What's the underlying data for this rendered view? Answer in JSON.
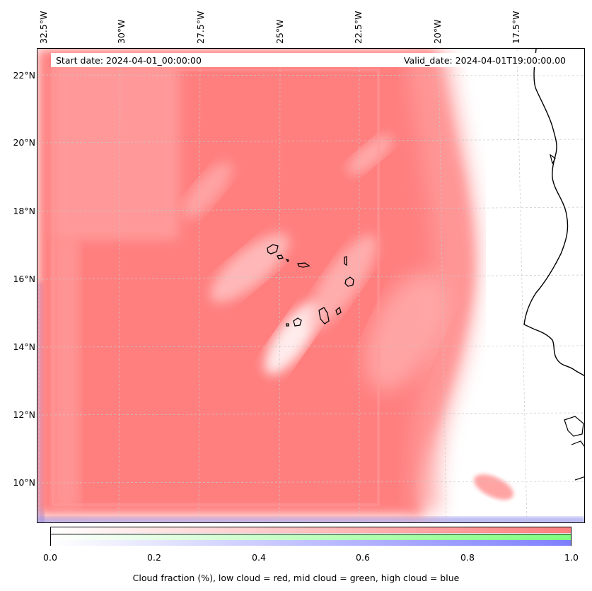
{
  "map": {
    "start_date": "Start date: 2024-04-01_00:00:00",
    "valid_date": "Valid_date: 2024-04-01T19:00:00.00",
    "lon_ticks": [
      "32.5°W",
      "30°W",
      "27.5°W",
      "25°W",
      "22.5°W",
      "20°W",
      "17.5°W"
    ],
    "lat_ticks": [
      "22°N",
      "20°N",
      "18°N",
      "16°N",
      "14°N",
      "12°N",
      "10°N"
    ],
    "colors": {
      "low_cloud": "#ff7f7f",
      "mid_cloud": "#7fff7f",
      "high_cloud": "#7f7fff",
      "coastline": "#000000",
      "gridline": "#b0b0b0"
    }
  },
  "colorbar": {
    "ticks": [
      "0.0",
      "0.2",
      "0.4",
      "0.6",
      "0.8",
      "1.0"
    ],
    "range": [
      0.0,
      1.0
    ],
    "label": "Cloud fraction (%), low cloud = red, mid cloud = green, high cloud = blue"
  }
}
